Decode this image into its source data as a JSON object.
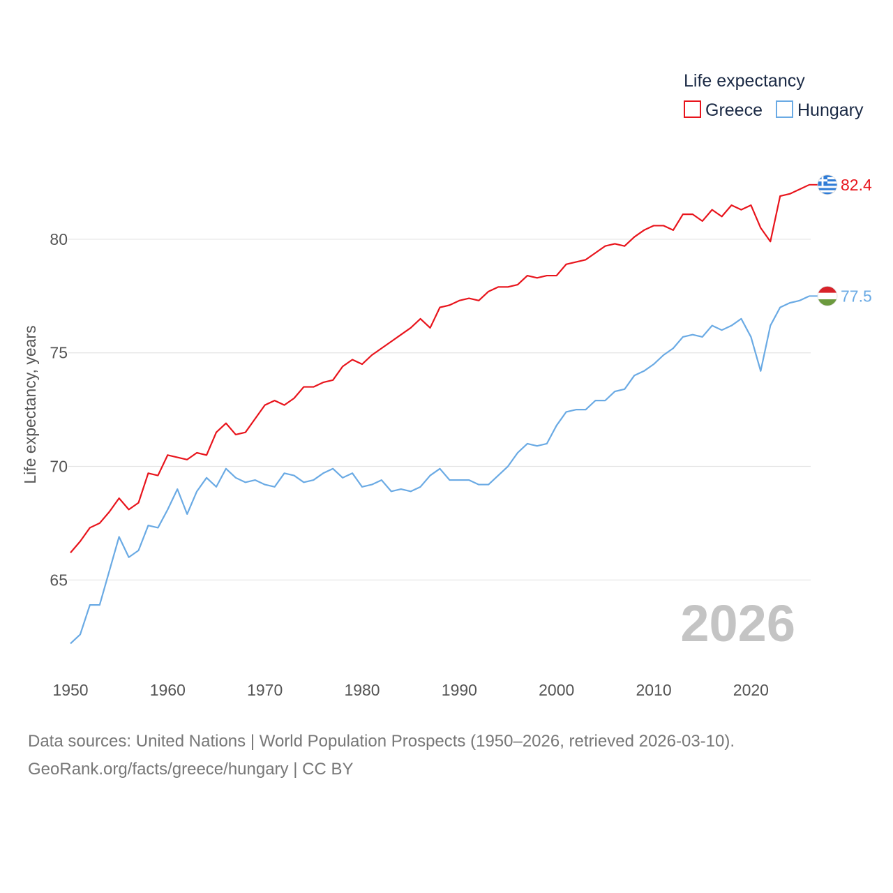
{
  "chart_data": {
    "type": "line",
    "legend_title": "Life expectancy",
    "ylabel": "Life expectancy, years",
    "xlabel": "",
    "xlim": [
      1950,
      2026
    ],
    "ylim": [
      62,
      83.5
    ],
    "x_ticks": [
      1950,
      1960,
      1970,
      1980,
      1990,
      2000,
      2010,
      2020
    ],
    "y_ticks": [
      65,
      70,
      75,
      80
    ],
    "current_year": "2026",
    "legend_placement": "top-right",
    "series": [
      {
        "name": "Greece",
        "color": "#e8141c",
        "flag": "greece-flag",
        "end_label": "82.4",
        "values": [
          66.2,
          66.7,
          67.3,
          67.5,
          68.0,
          68.6,
          68.1,
          68.4,
          69.7,
          69.6,
          70.5,
          70.4,
          70.3,
          70.6,
          70.5,
          71.5,
          71.9,
          71.4,
          71.5,
          72.1,
          72.7,
          72.9,
          72.7,
          73.0,
          73.5,
          73.5,
          73.7,
          73.8,
          74.4,
          74.7,
          74.5,
          74.9,
          75.2,
          75.5,
          75.8,
          76.1,
          76.5,
          76.1,
          77.0,
          77.1,
          77.3,
          77.4,
          77.3,
          77.7,
          77.9,
          77.9,
          78.0,
          78.4,
          78.3,
          78.4,
          78.4,
          78.9,
          79.0,
          79.1,
          79.4,
          79.7,
          79.8,
          79.7,
          80.1,
          80.4,
          80.6,
          80.6,
          80.4,
          81.1,
          81.1,
          80.8,
          81.3,
          81.0,
          81.5,
          81.3,
          81.5,
          80.5,
          79.9,
          81.9,
          82.0,
          82.2,
          82.4
        ]
      },
      {
        "name": "Hungary",
        "color": "#6aaae4",
        "flag": "hungary-flag",
        "end_label": "77.5",
        "values": [
          62.2,
          62.6,
          63.9,
          63.9,
          65.4,
          66.9,
          66.0,
          66.3,
          67.4,
          67.3,
          68.1,
          69.0,
          67.9,
          68.9,
          69.5,
          69.1,
          69.9,
          69.5,
          69.3,
          69.4,
          69.2,
          69.1,
          69.7,
          69.6,
          69.3,
          69.4,
          69.7,
          69.9,
          69.5,
          69.7,
          69.1,
          69.2,
          69.4,
          68.9,
          69.0,
          68.9,
          69.1,
          69.6,
          69.9,
          69.4,
          69.4,
          69.4,
          69.2,
          69.2,
          69.6,
          70.0,
          70.6,
          71.0,
          70.9,
          71.0,
          71.8,
          72.4,
          72.5,
          72.5,
          72.9,
          72.9,
          73.3,
          73.4,
          74.0,
          74.2,
          74.5,
          74.9,
          75.2,
          75.7,
          75.8,
          75.7,
          76.2,
          76.0,
          76.2,
          76.5,
          75.7,
          74.2,
          76.2,
          77.0,
          77.2,
          77.3,
          77.5
        ]
      }
    ]
  },
  "footer": {
    "line1": "Data sources: United Nations | World Population Prospects (1950–2026, retrieved 2026-03-10).",
    "line2": "GeoRank.org/facts/greece/hungary | CC BY"
  }
}
